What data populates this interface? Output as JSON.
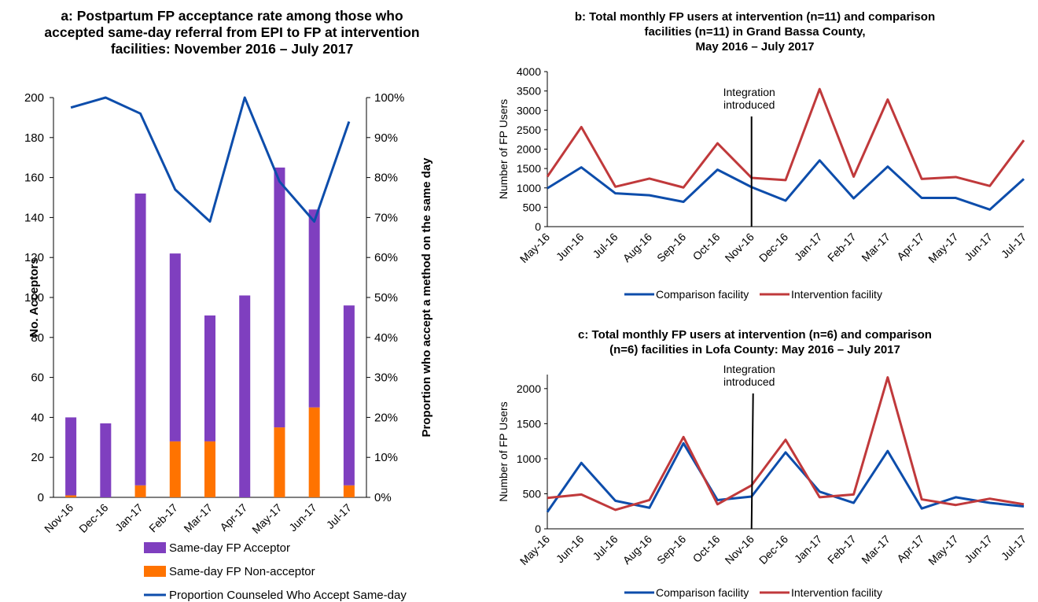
{
  "chart_data": [
    {
      "type": "bar+line",
      "title_lines": [
        "a: Postpartum FP acceptance rate among those who",
        "accepted same-day referral from EPI to FP at intervention",
        "facilities: November 2016 – July 2017"
      ],
      "ylabel": "No. Acceptors",
      "y2label": "Proportion who accept a method on the same day",
      "ylim": [
        0,
        200
      ],
      "yticks": [
        "0",
        "20",
        "40",
        "60",
        "80",
        "100",
        "120",
        "140",
        "160",
        "180",
        "200"
      ],
      "y2lim": [
        0,
        100
      ],
      "y2ticks": [
        "0%",
        "10%",
        "20%",
        "30%",
        "40%",
        "50%",
        "60%",
        "70%",
        "80%",
        "90%",
        "100%"
      ],
      "categories": [
        "Nov-16",
        "Dec-16",
        "Jan-17",
        "Feb-17",
        "Mar-17",
        "Apr-17",
        "May-17",
        "Jun-17",
        "Jul-17"
      ],
      "series": [
        {
          "name": "Same-day FP Acceptor",
          "kind": "bar",
          "color": "#7f3fbf",
          "values": [
            39,
            37,
            146,
            94,
            63,
            101,
            130,
            99,
            90
          ]
        },
        {
          "name": "Same-day FP Non-acceptor",
          "kind": "bar",
          "color": "#ff7300",
          "values": [
            1,
            0,
            6,
            28,
            28,
            0,
            35,
            45,
            6
          ]
        },
        {
          "name": "Proportion Counseled Who Accept Same-day",
          "kind": "line",
          "axis": "right",
          "color": "#0d4dab",
          "values": [
            97.5,
            100,
            96,
            77,
            69,
            100,
            79,
            69,
            94
          ]
        }
      ],
      "legend_position": "bottom"
    },
    {
      "type": "line",
      "title_lines": [
        "b: Total monthly FP users at intervention (n=11) and comparison",
        "facilities (n=11) in Grand Bassa County,",
        "May 2016 – July 2017"
      ],
      "ylabel": "Number of FP Users",
      "ylim": [
        0,
        4000
      ],
      "yticks": [
        "0",
        "500",
        "1000",
        "1500",
        "2000",
        "2500",
        "3000",
        "3500",
        "4000"
      ],
      "categories": [
        "May-16",
        "Jun-16",
        "Jul-16",
        "Aug-16",
        "Sep-16",
        "Oct-16",
        "Nov-16",
        "Dec-16",
        "Jan-17",
        "Feb-17",
        "Mar-17",
        "Apr-17",
        "May-17",
        "Jun-17",
        "Jul-17"
      ],
      "series": [
        {
          "name": "Comparison facility",
          "color": "#0d4dab",
          "values": [
            990,
            1530,
            860,
            810,
            640,
            1470,
            1020,
            670,
            1710,
            730,
            1550,
            740,
            740,
            440,
            1230
          ]
        },
        {
          "name": "Intervention facility",
          "color": "#c0393b",
          "values": [
            1290,
            2570,
            1030,
            1240,
            1010,
            2150,
            1260,
            1200,
            3550,
            1290,
            3280,
            1230,
            1280,
            1050,
            2230
          ]
        }
      ],
      "annotation": {
        "text_lines": [
          "Integration",
          "introduced"
        ],
        "at_category": "Nov-16"
      },
      "legend_position": "bottom"
    },
    {
      "type": "line",
      "title_lines": [
        "c: Total monthly FP users at intervention (n=6) and comparison",
        "(n=6) facilities in Lofa County: May 2016 – July 2017"
      ],
      "ylabel": "Number of FP Users",
      "ylim": [
        0,
        2200
      ],
      "yticks": [
        "0",
        "500",
        "1000",
        "1500",
        "2000"
      ],
      "categories": [
        "May-16",
        "Jun-16",
        "Jul-16",
        "Aug-16",
        "Sep-16",
        "Oct-16",
        "Nov-16",
        "Dec-16",
        "Jan-17",
        "Feb-17",
        "Mar-17",
        "Apr-17",
        "May-17",
        "Jun-17",
        "Jul-17"
      ],
      "series": [
        {
          "name": "Comparison facility",
          "color": "#0d4dab",
          "values": [
            240,
            940,
            400,
            300,
            1220,
            410,
            460,
            1090,
            530,
            370,
            1110,
            290,
            450,
            370,
            320
          ]
        },
        {
          "name": "Intervention facility",
          "color": "#c0393b",
          "values": [
            440,
            490,
            270,
            410,
            1310,
            350,
            620,
            1270,
            450,
            490,
            2160,
            420,
            340,
            430,
            350
          ]
        }
      ],
      "annotation": {
        "text_lines": [
          "Integration",
          "introduced"
        ],
        "at_category": "Nov-16"
      },
      "legend_position": "bottom"
    }
  ]
}
